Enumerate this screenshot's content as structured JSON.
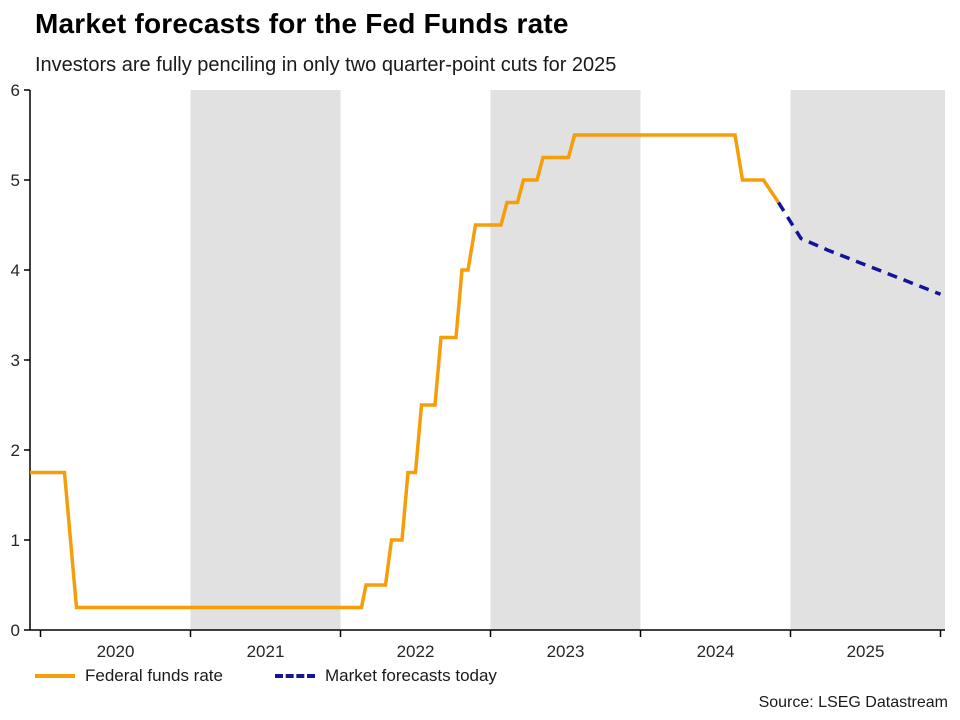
{
  "header": {
    "title": "Market forecasts for the Fed Funds rate",
    "subtitle": "Investors are fully penciling in only two quarter-point cuts for 2025"
  },
  "legend": {
    "items": [
      {
        "label": "Federal funds rate",
        "color": "#F59E0A",
        "style": "solid"
      },
      {
        "label": "Market forecasts today",
        "color": "#14149B",
        "style": "dashed"
      }
    ]
  },
  "footer": {
    "source": "Source: LSEG Datastream"
  },
  "chart_data": {
    "type": "line",
    "title": "Market forecasts for the Fed Funds rate",
    "subtitle": "Investors are fully penciling in only two quarter-point cuts for 2025",
    "xlabel": "",
    "ylabel": "",
    "ylim": [
      0,
      6
    ],
    "yticks": [
      0,
      1,
      2,
      3,
      4,
      5,
      6
    ],
    "xlim": [
      2019.93,
      2026.03
    ],
    "xticks": [
      {
        "label": "2020",
        "t": 2020.5
      },
      {
        "label": "2021",
        "t": 2021.5
      },
      {
        "label": "2022",
        "t": 2022.5
      },
      {
        "label": "2023",
        "t": 2023.5
      },
      {
        "label": "2024",
        "t": 2024.5
      },
      {
        "label": "2025",
        "t": 2025.5
      }
    ],
    "bands": [
      [
        2021,
        2022
      ],
      [
        2023,
        2024
      ],
      [
        2025,
        2026.03
      ]
    ],
    "band_color": "#E1E1E1",
    "axis_color": "#000000",
    "grid": false,
    "legend_position": "bottom-left",
    "series": [
      {
        "id": "federal-funds-line",
        "name": "Federal funds rate",
        "color": "#F59E0A",
        "dash": null,
        "points": [
          [
            2019.93,
            1.75
          ],
          [
            2020.16,
            1.75
          ],
          [
            2020.24,
            0.25
          ],
          [
            2022.14,
            0.25
          ],
          [
            2022.17,
            0.5
          ],
          [
            2022.3,
            0.5
          ],
          [
            2022.34,
            1.0
          ],
          [
            2022.41,
            1.0
          ],
          [
            2022.45,
            1.75
          ],
          [
            2022.5,
            1.75
          ],
          [
            2022.54,
            2.5
          ],
          [
            2022.63,
            2.5
          ],
          [
            2022.67,
            3.25
          ],
          [
            2022.77,
            3.25
          ],
          [
            2022.81,
            4.0
          ],
          [
            2022.85,
            4.0
          ],
          [
            2022.9,
            4.5
          ],
          [
            2023.07,
            4.5
          ],
          [
            2023.11,
            4.75
          ],
          [
            2023.18,
            4.75
          ],
          [
            2023.22,
            5.0
          ],
          [
            2023.31,
            5.0
          ],
          [
            2023.35,
            5.25
          ],
          [
            2023.52,
            5.25
          ],
          [
            2023.56,
            5.5
          ],
          [
            2024.63,
            5.5
          ],
          [
            2024.68,
            5.0
          ],
          [
            2024.82,
            5.0
          ],
          [
            2024.92,
            4.75
          ]
        ]
      },
      {
        "id": "market-forecast-line",
        "name": "Market forecasts today",
        "color": "#14149B",
        "dash": "10 7",
        "points": [
          [
            2024.92,
            4.75
          ],
          [
            2025.07,
            4.35
          ],
          [
            2025.25,
            4.22
          ],
          [
            2026.0,
            3.73
          ]
        ]
      }
    ]
  }
}
